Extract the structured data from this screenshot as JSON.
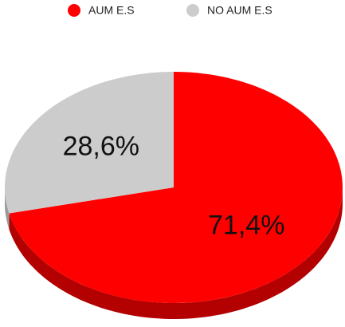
{
  "chart_data": {
    "type": "pie",
    "categories": [
      "AUM E.S",
      "NO AUM E.S"
    ],
    "values": [
      71.4,
      28.6
    ],
    "value_labels": [
      "71,4%",
      "28,6%"
    ],
    "colors": [
      "#ff0000",
      "#cccccc"
    ],
    "side_colors": [
      "#b30000",
      "#9a9a9a"
    ],
    "legend": "top"
  }
}
